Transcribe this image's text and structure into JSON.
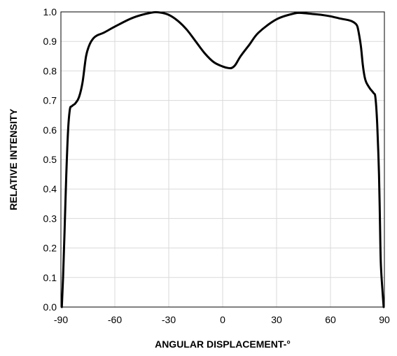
{
  "chart_data": {
    "type": "line",
    "title": "",
    "xlabel": "ANGULAR DISPLACEMENT-°",
    "ylabel": "RELATIVE INTENSITY",
    "xlim": [
      -90,
      90
    ],
    "ylim": [
      0.0,
      1.0
    ],
    "x_ticks": [
      "-90",
      "-60",
      "-30",
      "0",
      "30",
      "60",
      "90"
    ],
    "x_tick_values": [
      -90,
      -60,
      -30,
      0,
      30,
      60,
      90
    ],
    "y_ticks": [
      "0.0",
      "0.1",
      "0.2",
      "0.3",
      "0.4",
      "0.5",
      "0.6",
      "0.7",
      "0.8",
      "0.9",
      "1.0"
    ],
    "y_tick_values": [
      0.0,
      0.1,
      0.2,
      0.3,
      0.4,
      0.5,
      0.6,
      0.7,
      0.8,
      0.9,
      1.0
    ],
    "grid": true,
    "legend": "none",
    "colors": {
      "line": "#000000",
      "grid": "#d9d9d9",
      "frame": "#000000"
    },
    "series": [
      {
        "x": [
          -89.5,
          -88.8,
          -88,
          -87,
          -86,
          -85,
          -84,
          -83,
          -82,
          -80,
          -78,
          -76,
          -74,
          -72,
          -70,
          -66,
          -60,
          -50,
          -40,
          -35,
          -30,
          -25,
          -20,
          -15,
          -10,
          -5,
          0,
          3,
          5,
          7,
          10,
          15,
          20,
          30,
          40,
          45,
          50,
          55,
          60,
          65,
          70,
          72,
          74,
          75,
          76,
          77,
          78,
          79,
          80,
          82,
          84,
          85,
          86,
          87,
          87.5,
          88,
          89,
          89.6
        ],
        "y": [
          0.0,
          0.1,
          0.25,
          0.45,
          0.6,
          0.67,
          0.68,
          0.685,
          0.69,
          0.71,
          0.76,
          0.85,
          0.89,
          0.91,
          0.92,
          0.93,
          0.95,
          0.98,
          0.997,
          0.998,
          0.99,
          0.97,
          0.94,
          0.9,
          0.86,
          0.83,
          0.815,
          0.81,
          0.81,
          0.82,
          0.85,
          0.89,
          0.93,
          0.975,
          0.995,
          0.996,
          0.993,
          0.99,
          0.985,
          0.978,
          0.972,
          0.968,
          0.96,
          0.95,
          0.92,
          0.88,
          0.82,
          0.78,
          0.76,
          0.74,
          0.725,
          0.71,
          0.62,
          0.45,
          0.3,
          0.15,
          0.05,
          0.0
        ]
      }
    ]
  }
}
